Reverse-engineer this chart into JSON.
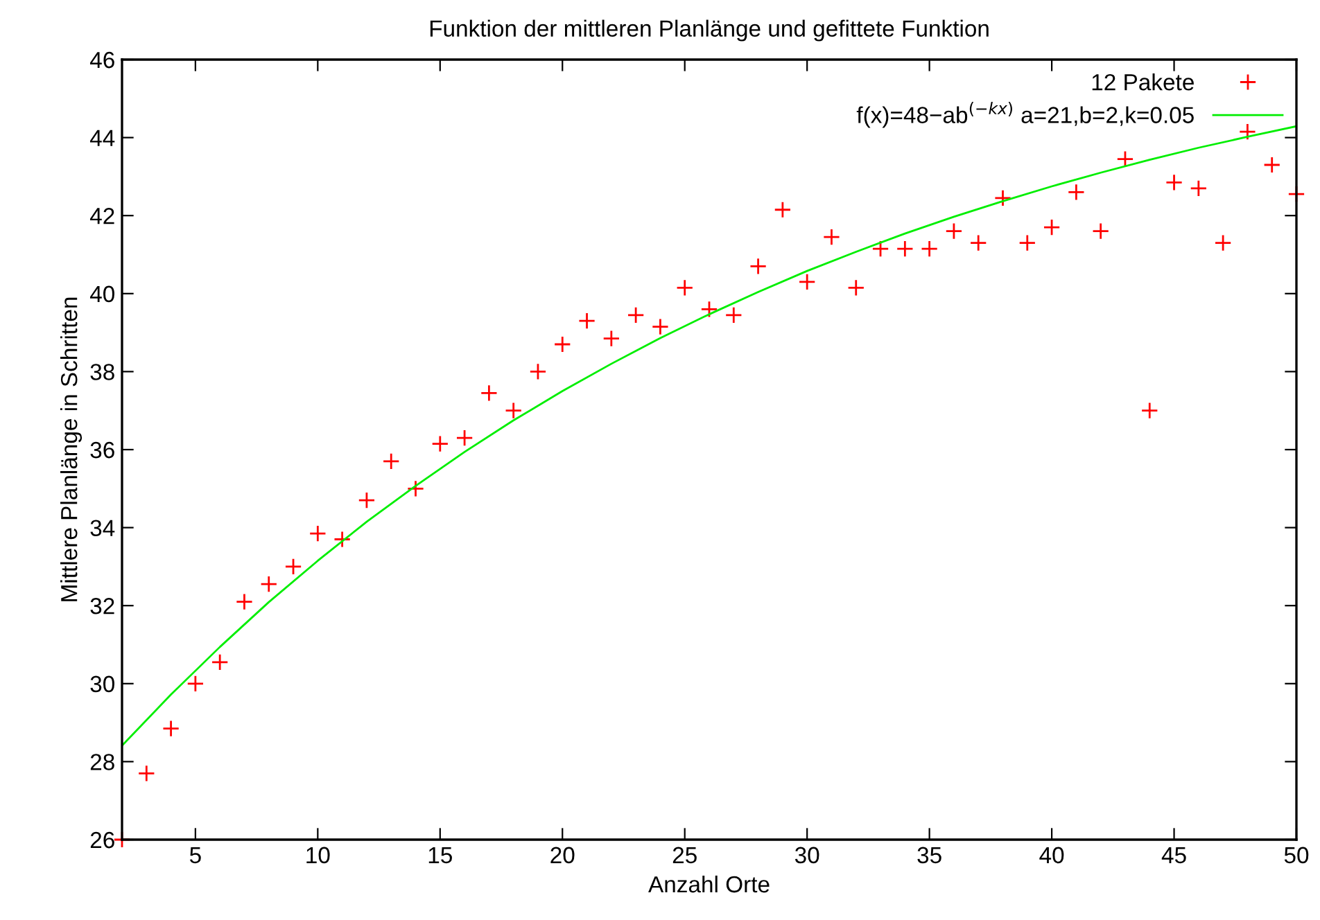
{
  "chart_data": {
    "type": "scatter",
    "title": "Funktion der mittleren Planlänge und gefittete Funktion",
    "xlabel": "Anzahl Orte",
    "ylabel": "Mittlere Planlänge in Schritten",
    "xlim": [
      2,
      50
    ],
    "xticks": [
      5,
      10,
      15,
      20,
      25,
      30,
      35,
      40,
      45,
      50
    ],
    "ylim": [
      26,
      46
    ],
    "yticks": [
      26,
      28,
      30,
      32,
      34,
      36,
      38,
      40,
      42,
      44,
      46
    ],
    "grid": false,
    "legend": "top right",
    "series": [
      {
        "name": "12 Pakete",
        "marker": "cross",
        "color": "#ff0000",
        "x": [
          2,
          3,
          4,
          5,
          6,
          7,
          8,
          9,
          10,
          11,
          12,
          13,
          14,
          15,
          16,
          17,
          18,
          19,
          20,
          21,
          22,
          23,
          24,
          25,
          26,
          27,
          28,
          29,
          30,
          31,
          32,
          33,
          34,
          35,
          36,
          37,
          38,
          39,
          40,
          41,
          42,
          43,
          44,
          45,
          46,
          47,
          48,
          49,
          50
        ],
        "values": [
          26.0,
          27.7,
          28.85,
          30.0,
          30.55,
          32.1,
          32.55,
          33.0,
          33.85,
          33.7,
          34.7,
          35.7,
          35.0,
          36.15,
          36.3,
          37.45,
          37.0,
          38.0,
          38.7,
          39.3,
          38.85,
          39.45,
          39.15,
          40.15,
          39.6,
          39.45,
          40.7,
          42.15,
          40.3,
          41.45,
          40.15,
          41.15,
          41.15,
          41.15,
          41.6,
          41.3,
          42.45,
          41.3,
          41.7,
          42.6,
          41.6,
          43.45,
          37.0,
          42.85,
          42.7,
          41.3,
          44.15,
          43.3,
          42.55
        ]
      },
      {
        "name": "f(x)=48−ab$^{(−kx)}$ a=21,b=2,k=0.05",
        "type": "line",
        "marker": "none",
        "line_style": "solid",
        "color": "#00ee00",
        "x": [
          2,
          4,
          6,
          8,
          10,
          12,
          14,
          16,
          18,
          20,
          22,
          24,
          26,
          28,
          30,
          32,
          34,
          36,
          38,
          40,
          42,
          44,
          46,
          48,
          50
        ],
        "values": [
          28.41,
          29.72,
          30.94,
          32.09,
          33.15,
          34.15,
          35.07,
          35.94,
          36.75,
          37.5,
          38.2,
          38.86,
          39.47,
          40.04,
          40.58,
          41.07,
          41.54,
          41.97,
          42.37,
          42.75,
          43.1,
          43.43,
          43.74,
          44.02,
          44.29
        ]
      }
    ]
  }
}
